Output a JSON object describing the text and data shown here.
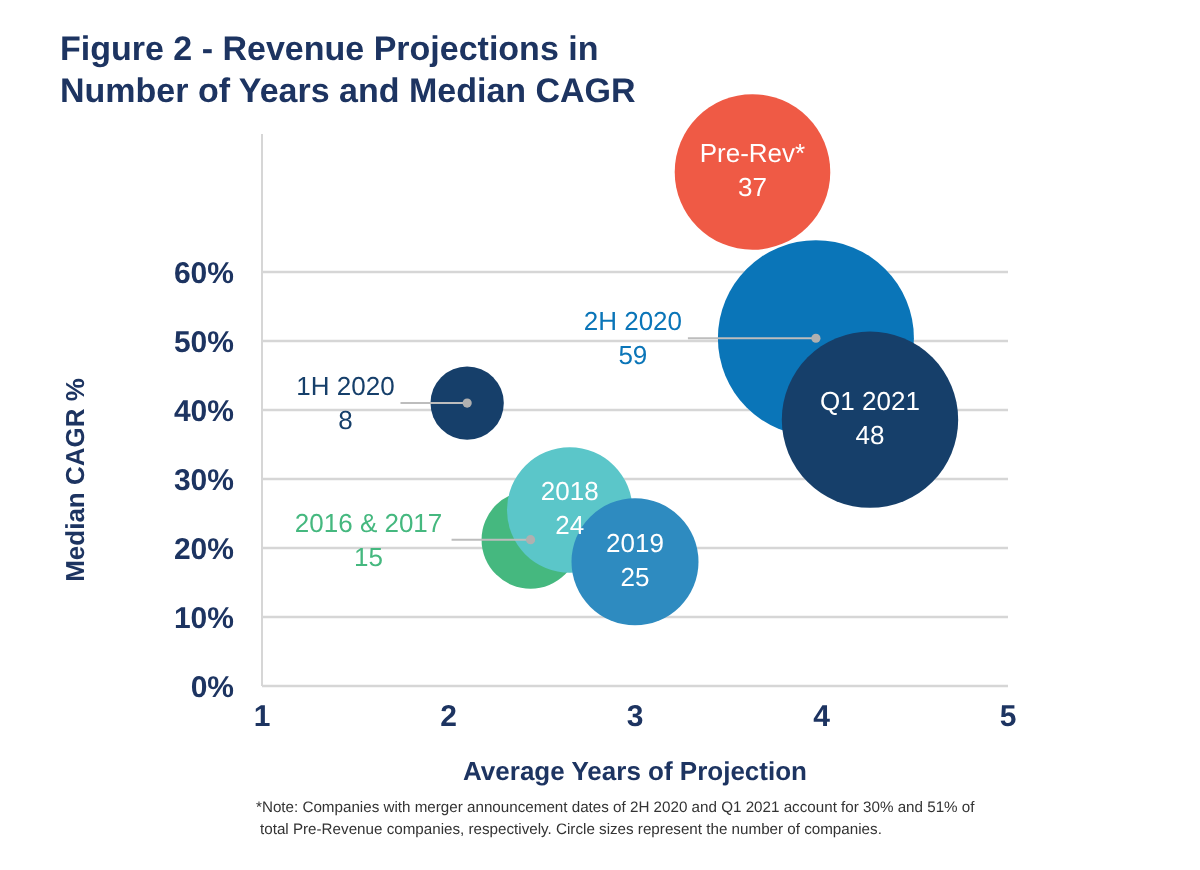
{
  "chart_data": {
    "type": "bubble",
    "title": "Figure 2 - Revenue Projections in Number of Years and Median CAGR",
    "xlabel": "Average Years of Projection",
    "ylabel": "Median CAGR %",
    "xlim": [
      1,
      5
    ],
    "xticks": [
      1,
      2,
      3,
      4,
      5
    ],
    "ylim": [
      0,
      80
    ],
    "yticks": [
      {
        "value": 0,
        "label": "0%"
      },
      {
        "value": 10,
        "label": "10%"
      },
      {
        "value": 20,
        "label": "20%"
      },
      {
        "value": 30,
        "label": "30%"
      },
      {
        "value": 40,
        "label": "40%"
      },
      {
        "value": 50,
        "label": "50%"
      },
      {
        "value": 60,
        "label": "60%"
      }
    ],
    "grid": "y",
    "series": [
      {
        "name": "Pre-Rev*",
        "color": "#ef5a45",
        "x": [
          3.63
        ],
        "values": [
          74.5
        ],
        "sizes": [
          0.63
        ]
      },
      {
        "name": "2H 2020",
        "color": "#0a75b8",
        "x": [
          3.97
        ],
        "values": [
          50.4
        ],
        "sizes": [
          1
        ]
      },
      {
        "name": "Q1 2021",
        "color": "#163f6a",
        "x": [
          4.26
        ],
        "values": [
          38.6
        ],
        "sizes": [
          0.81
        ]
      },
      {
        "name": "1H 2020",
        "color": "#163f6a",
        "x": [
          2.1
        ],
        "values": [
          41
        ],
        "sizes": [
          0.14
        ]
      },
      {
        "name": "2016 & 2017",
        "color": "#45b87f",
        "x": [
          2.44
        ],
        "values": [
          21.2
        ],
        "sizes": [
          0.25
        ]
      },
      {
        "name": "2018",
        "color": "#5bc6c9",
        "x": [
          2.65
        ],
        "values": [
          25.5
        ],
        "sizes": [
          0.41
        ]
      },
      {
        "name": "2019",
        "color": "#2e8bc0",
        "x": [
          3.0
        ],
        "values": [
          18
        ],
        "sizes": [
          0.42
        ]
      }
    ],
    "annotations": [
      "37",
      "59",
      "48",
      "8",
      "15",
      "24",
      "25",
      "*Note: Companies with merger announcement dates of 2H 2020 and Q1 2021 account for 30% and 51% of total Pre-Revenue companies, respectively. Circle sizes represent the number of companies."
    ]
  }
}
